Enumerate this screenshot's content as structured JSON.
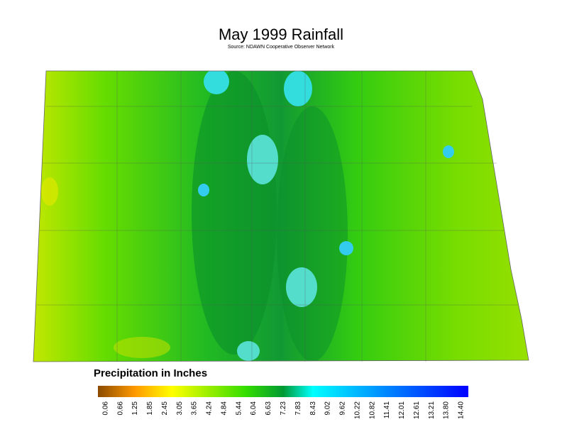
{
  "title": "May 1999 Rainfall",
  "subtitle": "Source: NDAWN Cooperative Observer Network",
  "legend": {
    "label": "Precipitation in Inches",
    "ticks": [
      "0.06",
      "0.66",
      "1.25",
      "1.85",
      "2.45",
      "3.05",
      "3.65",
      "4.24",
      "4.84",
      "5.44",
      "6.04",
      "6.63",
      "7.23",
      "7.83",
      "8.43",
      "9.02",
      "9.62",
      "10.22",
      "10.82",
      "11.41",
      "12.01",
      "12.61",
      "13.21",
      "13.80",
      "14.40"
    ]
  }
}
